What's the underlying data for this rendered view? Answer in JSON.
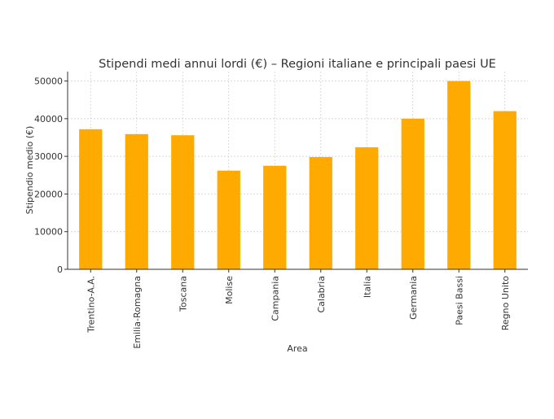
{
  "chart_data": {
    "type": "bar",
    "title": "Stipendi medi annui lordi (€) – Regioni italiane e principali paesi UE",
    "xlabel": "Area",
    "ylabel": "Stipendio medio (€)",
    "categories": [
      "Trentino-A.A.",
      "Emilia-Romagna",
      "Toscana",
      "Molise",
      "Campania",
      "Calabria",
      "Italia",
      "Germania",
      "Paesi Bassi",
      "Regno Unito"
    ],
    "values": [
      37200,
      35900,
      35600,
      26200,
      27500,
      29800,
      32400,
      40000,
      50000,
      42000
    ],
    "ylim": [
      0,
      52500
    ],
    "yticks": [
      0,
      10000,
      20000,
      30000,
      40000,
      50000
    ],
    "bar_color": "#FFAA00",
    "grid": true,
    "legend": "none"
  }
}
